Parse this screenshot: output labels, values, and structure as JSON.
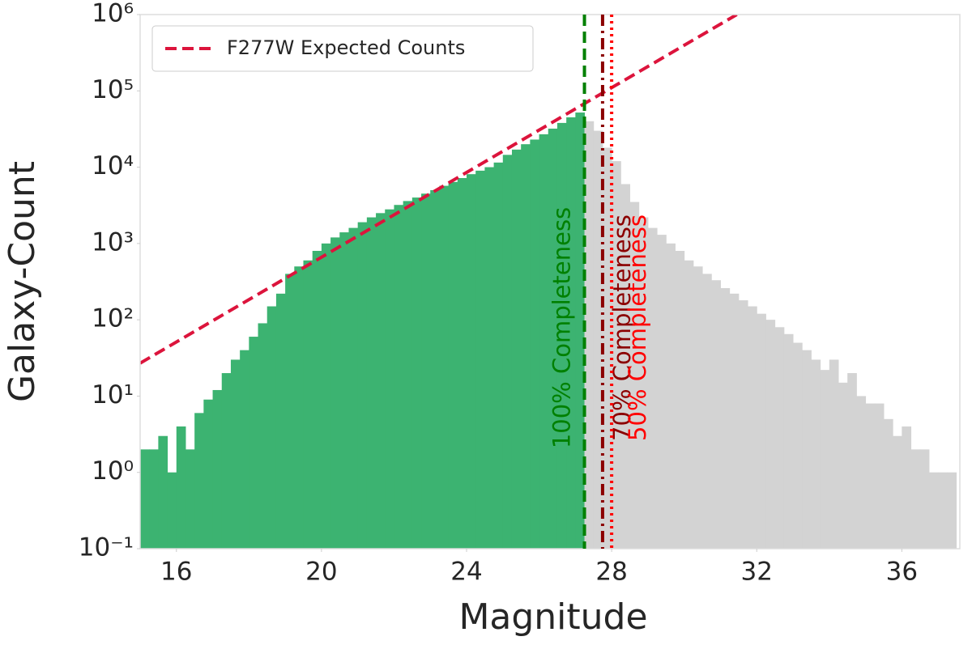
{
  "chart_data": {
    "type": "histogram",
    "xlabel": "Magnitude",
    "ylabel": "Galaxy-Count",
    "xlim": [
      15,
      37.6
    ],
    "ylim": [
      0.1,
      1000000
    ],
    "yscale": "log",
    "xticks": [
      16,
      20,
      24,
      28,
      32,
      36
    ],
    "yticks": [
      {
        "value": 0.1,
        "label": "10⁻¹"
      },
      {
        "value": 1,
        "label": "10⁰"
      },
      {
        "value": 10,
        "label": "10¹"
      },
      {
        "value": 100,
        "label": "10²"
      },
      {
        "value": 1000,
        "label": "10³"
      },
      {
        "value": 10000,
        "label": "10⁴"
      },
      {
        "value": 100000,
        "label": "10⁵"
      },
      {
        "value": 1000000,
        "label": "10⁶"
      }
    ],
    "bins": [
      15,
      15.25,
      15.5,
      15.75,
      16,
      16.25,
      16.5,
      16.75,
      17,
      17.25,
      17.5,
      17.75,
      18,
      18.25,
      18.5,
      18.75,
      19,
      19.25,
      19.5,
      19.75,
      20,
      20.25,
      20.5,
      20.75,
      21,
      21.25,
      21.5,
      21.75,
      22,
      22.25,
      22.5,
      22.75,
      23,
      23.25,
      23.5,
      23.75,
      24,
      24.25,
      24.5,
      24.75,
      25,
      25.25,
      25.5,
      25.75,
      26,
      26.25,
      26.5,
      26.75,
      27,
      27.25,
      27.5,
      27.75,
      28,
      28.25,
      28.5,
      28.75,
      29,
      29.25,
      29.5,
      29.75,
      30,
      30.25,
      30.5,
      30.75,
      31,
      31.25,
      31.5,
      31.75,
      32,
      32.25,
      32.5,
      32.75,
      33,
      33.25,
      33.5,
      33.75,
      34,
      34.25,
      34.5,
      34.75,
      35,
      35.25,
      35.5,
      35.75,
      36,
      36.25,
      36.5,
      36.75,
      37,
      37.25,
      37.5
    ],
    "values": [
      2,
      2,
      3,
      1,
      4,
      2,
      6,
      9,
      12,
      20,
      30,
      40,
      60,
      90,
      150,
      220,
      400,
      500,
      600,
      800,
      1000,
      1200,
      1400,
      1600,
      1900,
      2200,
      2500,
      2800,
      3200,
      3600,
      4000,
      4500,
      5000,
      5700,
      6400,
      7200,
      8100,
      9000,
      10000,
      11500,
      14500,
      17000,
      20000,
      23000,
      27000,
      32000,
      38000,
      45000,
      52000,
      40000,
      30000,
      18000,
      12000,
      6000,
      3500,
      2200,
      1600,
      1300,
      1000,
      800,
      600,
      500,
      400,
      330,
      260,
      220,
      180,
      150,
      120,
      100,
      80,
      65,
      50,
      40,
      30,
      22,
      30,
      15,
      20,
      10,
      8,
      8,
      5,
      3,
      4,
      2,
      2,
      1,
      1,
      1
    ],
    "color": "#d3d3d3",
    "highlight_color": "#3cb371",
    "series": [
      {
        "name": "F277W Expected Counts",
        "color": "#dc143c",
        "style": "dashed",
        "x": [
          15,
          31.45
        ],
        "values": [
          27,
          1000000
        ]
      }
    ],
    "vlines": [
      {
        "x": 27.25,
        "label": "100% Completeness",
        "color": "#008000",
        "style": "dashed",
        "label_side": "left"
      },
      {
        "x": 27.75,
        "label": "70% Completeness",
        "color": "#8b0000",
        "style": "dashdot",
        "label_side": "right"
      },
      {
        "x": 28.0,
        "label": "50% Completeness",
        "color": "#ff0000",
        "style": "dotted",
        "label_side": "right"
      }
    ],
    "legend": "upper left"
  }
}
